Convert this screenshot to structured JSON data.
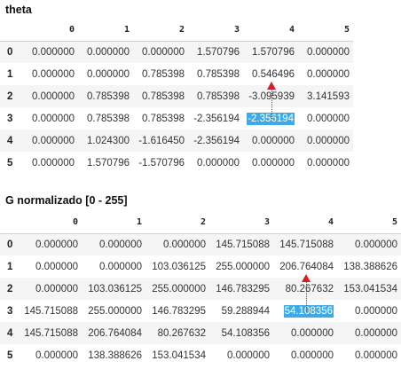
{
  "theta": {
    "title": "theta",
    "columns": [
      "",
      "0",
      "1",
      "2",
      "3",
      "4",
      "5"
    ],
    "rows": [
      {
        "index": "0",
        "cells": [
          "0.000000",
          "0.000000",
          "0.000000",
          "1.570796",
          "1.570796",
          "0.000000"
        ]
      },
      {
        "index": "1",
        "cells": [
          "0.000000",
          "0.000000",
          "0.785398",
          "0.785398",
          "0.546496",
          "0.000000"
        ]
      },
      {
        "index": "2",
        "cells": [
          "0.000000",
          "0.785398",
          "0.785398",
          "0.785398",
          "-3.095939",
          "3.141593"
        ]
      },
      {
        "index": "3",
        "cells": [
          "0.000000",
          "0.785398",
          "0.785398",
          "-2.356194",
          "-2.356194",
          "0.000000"
        ]
      },
      {
        "index": "4",
        "cells": [
          "0.000000",
          "1.024300",
          "-1.616450",
          "-2.356194",
          "0.000000",
          "0.000000"
        ]
      },
      {
        "index": "5",
        "cells": [
          "0.000000",
          "1.570796",
          "-1.570796",
          "0.000000",
          "0.000000",
          "0.000000"
        ]
      }
    ],
    "highlight": {
      "row": 3,
      "col": 4
    }
  },
  "g": {
    "title": "G normalizado [0 - 255]",
    "columns": [
      "",
      "0",
      "1",
      "2",
      "3",
      "4",
      "5"
    ],
    "rows": [
      {
        "index": "0",
        "cells": [
          "0.000000",
          "0.000000",
          "0.000000",
          "145.715088",
          "145.715088",
          "0.000000"
        ]
      },
      {
        "index": "1",
        "cells": [
          "0.000000",
          "0.000000",
          "103.036125",
          "255.000000",
          "206.764084",
          "138.388626"
        ]
      },
      {
        "index": "2",
        "cells": [
          "0.000000",
          "103.036125",
          "255.000000",
          "146.783295",
          "80.267632",
          "153.041534"
        ]
      },
      {
        "index": "3",
        "cells": [
          "145.715088",
          "255.000000",
          "146.783295",
          "59.288944",
          "54.108356",
          "0.000000"
        ]
      },
      {
        "index": "4",
        "cells": [
          "145.715088",
          "206.764084",
          "80.267632",
          "54.108356",
          "0.000000",
          "0.000000"
        ]
      },
      {
        "index": "5",
        "cells": [
          "0.000000",
          "138.388626",
          "153.041534",
          "0.000000",
          "0.000000",
          "0.000000"
        ]
      }
    ],
    "highlight": {
      "row": 3,
      "col": 4
    }
  },
  "colors": {
    "highlight_bg": "#3fa9e6",
    "arrow": "#d41f26",
    "stripe": "#f5f5f5"
  }
}
